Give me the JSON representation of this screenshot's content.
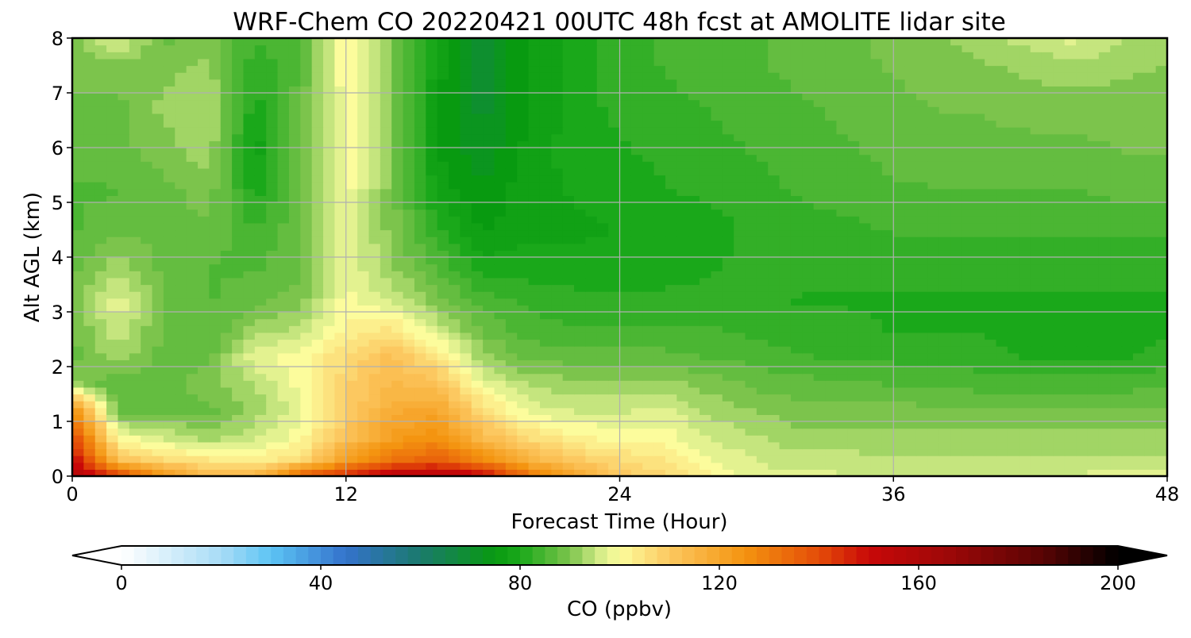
{
  "chart_data": {
    "type": "heatmap",
    "title": "WRF-Chem CO  20220421 00UTC 48h fcst at AMOLITE lidar site",
    "xlabel": "Forecast Time (Hour)",
    "ylabel": "Alt AGL (km)",
    "xlim": [
      0,
      48
    ],
    "ylim": [
      0,
      8
    ],
    "xticks": [
      0,
      12,
      24,
      36,
      48
    ],
    "yticks": [
      0,
      1,
      2,
      3,
      4,
      5,
      6,
      7,
      8
    ],
    "grid": true,
    "colorbar": {
      "label": "CO  (ppbv)",
      "range": [
        0,
        200
      ],
      "ticks": [
        0,
        40,
        80,
        120,
        160,
        200
      ],
      "extend": "both",
      "orientation": "horizontal",
      "placement": "bottom",
      "colors": [
        [
          0,
          "#ffffff"
        ],
        [
          20,
          "#a8dcf6"
        ],
        [
          30,
          "#5cc4f4"
        ],
        [
          45,
          "#3472cc"
        ],
        [
          60,
          "#1a7a6c"
        ],
        [
          75,
          "#089a10"
        ],
        [
          80,
          "#1aa81a"
        ],
        [
          90,
          "#7cc44c"
        ],
        [
          96,
          "#d4ec88"
        ],
        [
          100,
          "#fcfc9c"
        ],
        [
          110,
          "#fcc860"
        ],
        [
          125,
          "#f49410"
        ],
        [
          140,
          "#e44c08"
        ],
        [
          150,
          "#c80808"
        ],
        [
          165,
          "#a00808"
        ],
        [
          185,
          "#580404"
        ],
        [
          200,
          "#000000"
        ]
      ]
    },
    "hours": [
      0,
      2,
      4,
      6,
      8,
      10,
      12,
      14,
      16,
      18,
      20,
      22,
      24,
      26,
      28,
      30,
      32,
      34,
      36,
      38,
      40,
      42,
      44,
      46,
      48
    ],
    "altitudes_km": [
      0.05,
      0.3,
      0.7,
      1.2,
      1.7,
      2.2,
      2.7,
      3.2,
      3.8,
      4.5,
      5.2,
      6.0,
      6.8,
      7.5,
      8.0
    ],
    "values_ppbv": [
      [
        158,
        138,
        122,
        113,
        112,
        132,
        142,
        152,
        155,
        148,
        130,
        118,
        110,
        106,
        101,
        97,
        97,
        96,
        95,
        95,
        95,
        96,
        96,
        97,
        97
      ],
      [
        152,
        112,
        106,
        104,
        102,
        106,
        122,
        132,
        136,
        128,
        116,
        110,
        106,
        104,
        99,
        96,
        95,
        95,
        94,
        94,
        94,
        94,
        94,
        94,
        94
      ],
      [
        142,
        100,
        96,
        92,
        96,
        100,
        112,
        122,
        126,
        114,
        106,
        102,
        100,
        100,
        96,
        94,
        92,
        92,
        92,
        92,
        92,
        92,
        92,
        92,
        92
      ],
      [
        126,
        88,
        88,
        88,
        92,
        98,
        108,
        118,
        120,
        106,
        98,
        96,
        96,
        97,
        93,
        91,
        90,
        90,
        90,
        89,
        89,
        89,
        89,
        89,
        89
      ],
      [
        92,
        86,
        88,
        90,
        94,
        100,
        108,
        114,
        112,
        98,
        93,
        92,
        92,
        92,
        90,
        88,
        87,
        87,
        86,
        86,
        85,
        85,
        85,
        85,
        86
      ],
      [
        88,
        93,
        88,
        88,
        98,
        100,
        106,
        112,
        104,
        92,
        88,
        87,
        87,
        87,
        86,
        85,
        84,
        83,
        83,
        82,
        82,
        81,
        81,
        81,
        82
      ],
      [
        88,
        96,
        88,
        86,
        92,
        94,
        102,
        104,
        96,
        88,
        85,
        84,
        84,
        84,
        84,
        83,
        82,
        82,
        81,
        81,
        81,
        80,
        80,
        80,
        81
      ],
      [
        89,
        98,
        89,
        86,
        88,
        90,
        100,
        96,
        90,
        85,
        83,
        82,
        82,
        82,
        82,
        82,
        81,
        81,
        81,
        81,
        81,
        81,
        81,
        81,
        81
      ],
      [
        88,
        93,
        88,
        86,
        86,
        88,
        98,
        92,
        86,
        80,
        80,
        80,
        80,
        80,
        81,
        82,
        82,
        82,
        82,
        82,
        82,
        82,
        82,
        82,
        82
      ],
      [
        86,
        88,
        88,
        88,
        84,
        88,
        99,
        90,
        82,
        76,
        78,
        78,
        79,
        79,
        80,
        82,
        83,
        83,
        84,
        84,
        84,
        84,
        84,
        84,
        84
      ],
      [
        86,
        86,
        88,
        90,
        80,
        88,
        100,
        90,
        78,
        74,
        78,
        79,
        80,
        81,
        82,
        83,
        84,
        85,
        86,
        86,
        86,
        86,
        86,
        87,
        87
      ],
      [
        87,
        88,
        90,
        93,
        77,
        88,
        100,
        90,
        76,
        72,
        77,
        80,
        81,
        82,
        83,
        84,
        85,
        86,
        87,
        88,
        88,
        88,
        88,
        89,
        89
      ],
      [
        88,
        88,
        92,
        94,
        80,
        88,
        100,
        90,
        76,
        70,
        76,
        80,
        82,
        83,
        84,
        85,
        86,
        87,
        88,
        89,
        89,
        90,
        90,
        90,
        90
      ],
      [
        90,
        90,
        90,
        92,
        82,
        86,
        101,
        90,
        78,
        70,
        76,
        80,
        82,
        84,
        85,
        86,
        87,
        88,
        89,
        90,
        91,
        92,
        93,
        92,
        91
      ],
      [
        90,
        98,
        88,
        90,
        84,
        86,
        101,
        90,
        80,
        70,
        76,
        80,
        82,
        84,
        85,
        86,
        87,
        88,
        90,
        91,
        93,
        95,
        97,
        94,
        92
      ]
    ]
  }
}
